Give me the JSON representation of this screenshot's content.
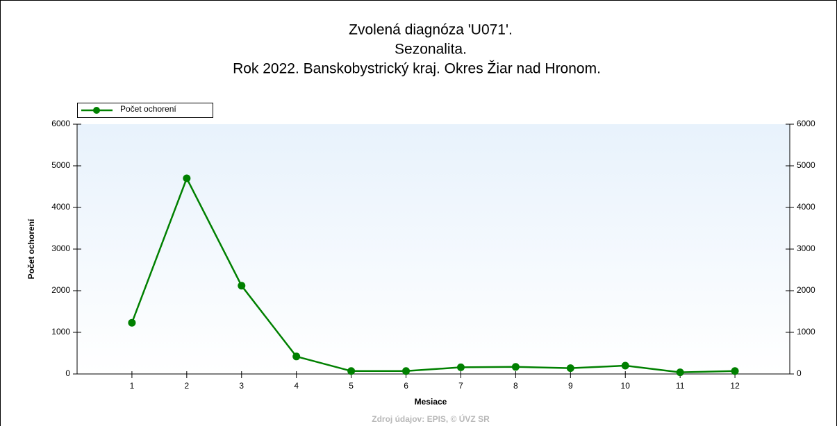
{
  "chart_data": {
    "type": "line",
    "title": "Zvolená diagnóza 'U071'.",
    "subtitle": [
      "Sezonalita.",
      "Rok 2022. Banskobystrický kraj. Okres Žiar nad Hronom."
    ],
    "x_label": "Mesiace",
    "y_label": "Počet ochorení",
    "source": "Zdroj údajov: EPIS, © ÚVZ SR",
    "x": [
      1,
      2,
      3,
      4,
      5,
      6,
      7,
      8,
      9,
      10,
      11,
      12
    ],
    "xlim": [
      0,
      13
    ],
    "xticks": [
      1,
      2,
      3,
      4,
      5,
      6,
      7,
      8,
      9,
      10,
      11,
      12
    ],
    "series": [
      {
        "name": "Počet ochorení",
        "color": "#008000",
        "values": [
          1230,
          4700,
          2120,
          420,
          70,
          70,
          160,
          170,
          140,
          200,
          40,
          70
        ]
      }
    ],
    "ylim": [
      0,
      6000
    ],
    "yticks": [
      0,
      1000,
      2000,
      3000,
      4000,
      5000,
      6000
    ],
    "y2lim": [
      0,
      6000
    ],
    "y2ticks": [
      0,
      1000,
      2000,
      3000,
      4000,
      5000,
      6000
    ],
    "legend": "top-left"
  }
}
